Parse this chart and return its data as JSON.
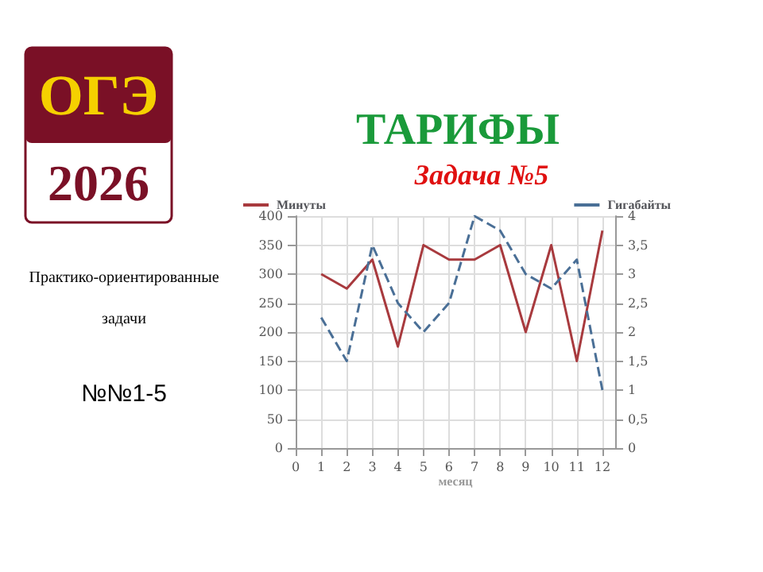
{
  "chart_data": {
    "type": "line",
    "title": "ТАРИФЫ",
    "subtitle": "Задача №5",
    "xlabel": "месяц",
    "annotations": [
      "ОГЭ",
      "2026",
      "Практико-ориентированные задачи",
      "№№1-5"
    ],
    "x": [
      1,
      2,
      3,
      4,
      5,
      6,
      7,
      8,
      9,
      10,
      11,
      12
    ],
    "series": [
      {
        "name": "Минуты",
        "color": "#a83a3e",
        "line_style": "solid",
        "values": [
          300,
          275,
          325,
          175,
          350,
          325,
          325,
          350,
          200,
          350,
          150,
          375
        ]
      },
      {
        "name": "Гигабайты",
        "color": "#4a6f96",
        "line_style": "dashed",
        "axis": "y2",
        "values": [
          2.25,
          1.5,
          3.5,
          2.5,
          2,
          2.5,
          4,
          3.75,
          3,
          2.75,
          3.25,
          1
        ]
      }
    ],
    "xlim": [
      0,
      12.5
    ],
    "xticks": [
      0,
      1,
      2,
      3,
      4,
      5,
      6,
      7,
      8,
      9,
      10,
      11,
      12
    ],
    "ylim": [
      0,
      400
    ],
    "yticks": [
      0,
      50,
      100,
      150,
      200,
      250,
      300,
      350,
      400
    ],
    "y2lim": [
      0,
      4
    ],
    "y2ticks": [
      0,
      {
        "value": 0.5,
        "label": "0,5"
      },
      1,
      {
        "value": 1.5,
        "label": "1,5"
      },
      2,
      {
        "value": 2.5,
        "label": "2,5"
      },
      3,
      {
        "value": 3.5,
        "label": "3,5"
      },
      4
    ],
    "grid": true,
    "legend": "top",
    "marker": "none"
  }
}
